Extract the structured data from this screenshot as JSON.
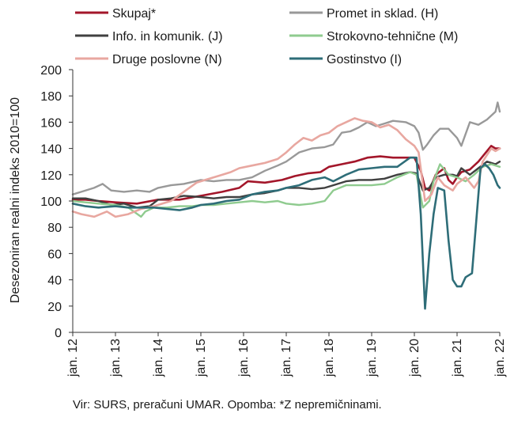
{
  "source_note": "Vir: SURS, preračuni UMAR. Opomba: *Z nepremičninami.",
  "chart_data": {
    "type": "line",
    "ylabel": "Desezoniran realni indeks 2010=100",
    "xlabel": "",
    "ylim": [
      0,
      200
    ],
    "yticks": [
      0,
      20,
      40,
      60,
      80,
      100,
      120,
      140,
      160,
      180,
      200
    ],
    "xlim": [
      2012.0,
      2022.0
    ],
    "xticks": [
      {
        "label": "jan. 12",
        "value": 2012
      },
      {
        "label": "jan. 13",
        "value": 2013
      },
      {
        "label": "jan. 14",
        "value": 2014
      },
      {
        "label": "jan. 15",
        "value": 2015
      },
      {
        "label": "jan. 16",
        "value": 2016
      },
      {
        "label": "jan. 17",
        "value": 2017
      },
      {
        "label": "jan. 18",
        "value": 2018
      },
      {
        "label": "jan. 19",
        "value": 2019
      },
      {
        "label": "jan. 20",
        "value": 2020
      },
      {
        "label": "jan. 21",
        "value": 2021
      },
      {
        "label": "jan. 22",
        "value": 2022
      }
    ],
    "grid": false,
    "legend": "top, two columns",
    "series": [
      {
        "name": "Skupaj*",
        "color": "#a3162a",
        "width": 2.6,
        "points": [
          [
            2012.0,
            101
          ],
          [
            2012.3,
            101
          ],
          [
            2012.6,
            100
          ],
          [
            2013.0,
            99
          ],
          [
            2013.5,
            98
          ],
          [
            2014.0,
            101
          ],
          [
            2014.5,
            101
          ],
          [
            2015.0,
            104
          ],
          [
            2015.5,
            107
          ],
          [
            2015.9,
            110
          ],
          [
            2016.1,
            115
          ],
          [
            2016.5,
            114
          ],
          [
            2016.9,
            116
          ],
          [
            2017.2,
            119
          ],
          [
            2017.5,
            121
          ],
          [
            2017.8,
            122
          ],
          [
            2018.0,
            126
          ],
          [
            2018.3,
            128
          ],
          [
            2018.6,
            130
          ],
          [
            2018.9,
            133
          ],
          [
            2019.2,
            134
          ],
          [
            2019.5,
            133
          ],
          [
            2019.8,
            133
          ],
          [
            2020.0,
            133
          ],
          [
            2020.15,
            123
          ],
          [
            2020.25,
            110
          ],
          [
            2020.35,
            108
          ],
          [
            2020.5,
            120
          ],
          [
            2020.7,
            125
          ],
          [
            2020.8,
            116
          ],
          [
            2020.9,
            113
          ],
          [
            2021.0,
            118
          ],
          [
            2021.1,
            122
          ],
          [
            2021.3,
            124
          ],
          [
            2021.5,
            130
          ],
          [
            2021.7,
            138
          ],
          [
            2021.8,
            142
          ],
          [
            2021.9,
            140
          ],
          [
            2022.0,
            140
          ]
        ]
      },
      {
        "name": "Promet in sklad. (H)",
        "color": "#999999",
        "width": 2.4,
        "points": [
          [
            2012.0,
            105
          ],
          [
            2012.2,
            107
          ],
          [
            2012.5,
            110
          ],
          [
            2012.7,
            113
          ],
          [
            2012.9,
            108
          ],
          [
            2013.2,
            107
          ],
          [
            2013.5,
            108
          ],
          [
            2013.8,
            107
          ],
          [
            2014.0,
            110
          ],
          [
            2014.3,
            112
          ],
          [
            2014.6,
            113
          ],
          [
            2015.0,
            116
          ],
          [
            2015.3,
            115
          ],
          [
            2015.6,
            116
          ],
          [
            2015.9,
            116
          ],
          [
            2016.2,
            118
          ],
          [
            2016.5,
            123
          ],
          [
            2016.8,
            127
          ],
          [
            2017.0,
            130
          ],
          [
            2017.3,
            137
          ],
          [
            2017.6,
            140
          ],
          [
            2017.9,
            141
          ],
          [
            2018.1,
            143
          ],
          [
            2018.3,
            152
          ],
          [
            2018.5,
            153
          ],
          [
            2018.7,
            156
          ],
          [
            2018.9,
            160
          ],
          [
            2019.1,
            157
          ],
          [
            2019.3,
            159
          ],
          [
            2019.5,
            161
          ],
          [
            2019.8,
            160
          ],
          [
            2020.0,
            157
          ],
          [
            2020.1,
            152
          ],
          [
            2020.2,
            139
          ],
          [
            2020.3,
            143
          ],
          [
            2020.45,
            150
          ],
          [
            2020.6,
            155
          ],
          [
            2020.8,
            155
          ],
          [
            2021.0,
            148
          ],
          [
            2021.1,
            142
          ],
          [
            2021.3,
            160
          ],
          [
            2021.5,
            158
          ],
          [
            2021.7,
            162
          ],
          [
            2021.9,
            168
          ],
          [
            2021.95,
            175
          ],
          [
            2022.0,
            168
          ]
        ]
      },
      {
        "name": "Info. in komunik. (J)",
        "color": "#404040",
        "width": 2.4,
        "points": [
          [
            2012.0,
            102
          ],
          [
            2012.3,
            102
          ],
          [
            2012.6,
            100
          ],
          [
            2012.9,
            97
          ],
          [
            2013.2,
            98
          ],
          [
            2013.5,
            95
          ],
          [
            2013.8,
            96
          ],
          [
            2014.0,
            101
          ],
          [
            2014.3,
            102
          ],
          [
            2014.6,
            104
          ],
          [
            2015.0,
            103
          ],
          [
            2015.3,
            102
          ],
          [
            2015.6,
            103
          ],
          [
            2015.9,
            103
          ],
          [
            2016.2,
            105
          ],
          [
            2016.5,
            106
          ],
          [
            2016.8,
            108
          ],
          [
            2017.0,
            110
          ],
          [
            2017.3,
            110
          ],
          [
            2017.6,
            109
          ],
          [
            2017.9,
            110
          ],
          [
            2018.1,
            112
          ],
          [
            2018.4,
            115
          ],
          [
            2018.7,
            116
          ],
          [
            2019.0,
            116
          ],
          [
            2019.3,
            117
          ],
          [
            2019.6,
            120
          ],
          [
            2019.9,
            122
          ],
          [
            2020.05,
            121
          ],
          [
            2020.2,
            108
          ],
          [
            2020.35,
            110
          ],
          [
            2020.5,
            118
          ],
          [
            2020.7,
            120
          ],
          [
            2020.9,
            120
          ],
          [
            2021.0,
            119
          ],
          [
            2021.1,
            125
          ],
          [
            2021.3,
            120
          ],
          [
            2021.5,
            125
          ],
          [
            2021.7,
            130
          ],
          [
            2021.9,
            128
          ],
          [
            2022.0,
            130
          ]
        ]
      },
      {
        "name": "Strokovno-tehnične (M)",
        "color": "#8fcb8f",
        "width": 2.4,
        "points": [
          [
            2012.0,
            100
          ],
          [
            2012.3,
            99
          ],
          [
            2012.6,
            98
          ],
          [
            2013.0,
            97
          ],
          [
            2013.3,
            95
          ],
          [
            2013.6,
            88
          ],
          [
            2013.7,
            92
          ],
          [
            2013.9,
            95
          ],
          [
            2014.2,
            95
          ],
          [
            2014.5,
            96
          ],
          [
            2014.8,
            96
          ],
          [
            2015.0,
            97
          ],
          [
            2015.3,
            97
          ],
          [
            2015.6,
            98
          ],
          [
            2015.9,
            99
          ],
          [
            2016.2,
            100
          ],
          [
            2016.5,
            99
          ],
          [
            2016.8,
            100
          ],
          [
            2017.0,
            98
          ],
          [
            2017.3,
            97
          ],
          [
            2017.6,
            98
          ],
          [
            2017.9,
            100
          ],
          [
            2018.1,
            108
          ],
          [
            2018.4,
            112
          ],
          [
            2018.7,
            112
          ],
          [
            2019.0,
            112
          ],
          [
            2019.3,
            113
          ],
          [
            2019.6,
            118
          ],
          [
            2019.9,
            122
          ],
          [
            2020.05,
            120
          ],
          [
            2020.2,
            95
          ],
          [
            2020.35,
            100
          ],
          [
            2020.45,
            115
          ],
          [
            2020.6,
            128
          ],
          [
            2020.8,
            120
          ],
          [
            2021.0,
            118
          ],
          [
            2021.2,
            115
          ],
          [
            2021.4,
            120
          ],
          [
            2021.6,
            126
          ],
          [
            2021.8,
            128
          ],
          [
            2022.0,
            126
          ]
        ]
      },
      {
        "name": "Druge poslovne (N)",
        "color": "#e8a7a0",
        "width": 2.6,
        "points": [
          [
            2012.0,
            92
          ],
          [
            2012.2,
            90
          ],
          [
            2012.5,
            88
          ],
          [
            2012.8,
            92
          ],
          [
            2013.0,
            88
          ],
          [
            2013.3,
            90
          ],
          [
            2013.6,
            94
          ],
          [
            2013.9,
            96
          ],
          [
            2014.1,
            98
          ],
          [
            2014.3,
            100
          ],
          [
            2014.6,
            107
          ],
          [
            2014.9,
            114
          ],
          [
            2015.1,
            116
          ],
          [
            2015.4,
            119
          ],
          [
            2015.7,
            122
          ],
          [
            2015.9,
            125
          ],
          [
            2016.2,
            127
          ],
          [
            2016.5,
            129
          ],
          [
            2016.8,
            132
          ],
          [
            2017.0,
            137
          ],
          [
            2017.2,
            143
          ],
          [
            2017.4,
            148
          ],
          [
            2017.6,
            146
          ],
          [
            2017.8,
            150
          ],
          [
            2018.0,
            152
          ],
          [
            2018.2,
            157
          ],
          [
            2018.4,
            160
          ],
          [
            2018.6,
            163
          ],
          [
            2018.8,
            161
          ],
          [
            2019.0,
            160
          ],
          [
            2019.2,
            156
          ],
          [
            2019.4,
            158
          ],
          [
            2019.6,
            154
          ],
          [
            2019.8,
            147
          ],
          [
            2020.0,
            142
          ],
          [
            2020.1,
            137
          ],
          [
            2020.25,
            100
          ],
          [
            2020.4,
            105
          ],
          [
            2020.55,
            118
          ],
          [
            2020.7,
            112
          ],
          [
            2020.9,
            108
          ],
          [
            2021.0,
            113
          ],
          [
            2021.2,
            118
          ],
          [
            2021.4,
            110
          ],
          [
            2021.5,
            115
          ],
          [
            2021.6,
            130
          ],
          [
            2021.8,
            140
          ],
          [
            2021.9,
            138
          ],
          [
            2022.0,
            140
          ]
        ]
      },
      {
        "name": "Gostinstvo (I)",
        "color": "#2e6d78",
        "width": 2.6,
        "points": [
          [
            2012.0,
            98
          ],
          [
            2012.3,
            96
          ],
          [
            2012.6,
            95
          ],
          [
            2013.0,
            96
          ],
          [
            2013.3,
            95
          ],
          [
            2013.6,
            95
          ],
          [
            2013.9,
            95
          ],
          [
            2014.2,
            94
          ],
          [
            2014.5,
            93
          ],
          [
            2014.8,
            95
          ],
          [
            2015.0,
            97
          ],
          [
            2015.3,
            98
          ],
          [
            2015.6,
            100
          ],
          [
            2015.9,
            101
          ],
          [
            2016.2,
            105
          ],
          [
            2016.5,
            107
          ],
          [
            2016.8,
            108
          ],
          [
            2017.0,
            110
          ],
          [
            2017.3,
            112
          ],
          [
            2017.6,
            116
          ],
          [
            2017.9,
            118
          ],
          [
            2018.1,
            115
          ],
          [
            2018.4,
            120
          ],
          [
            2018.7,
            124
          ],
          [
            2019.0,
            125
          ],
          [
            2019.3,
            126
          ],
          [
            2019.6,
            126
          ],
          [
            2019.9,
            133
          ],
          [
            2020.05,
            133
          ],
          [
            2020.15,
            90
          ],
          [
            2020.25,
            18
          ],
          [
            2020.35,
            60
          ],
          [
            2020.45,
            90
          ],
          [
            2020.55,
            110
          ],
          [
            2020.7,
            108
          ],
          [
            2020.8,
            70
          ],
          [
            2020.9,
            40
          ],
          [
            2021.0,
            35
          ],
          [
            2021.1,
            35
          ],
          [
            2021.2,
            42
          ],
          [
            2021.35,
            45
          ],
          [
            2021.45,
            85
          ],
          [
            2021.55,
            125
          ],
          [
            2021.65,
            128
          ],
          [
            2021.75,
            125
          ],
          [
            2021.85,
            120
          ],
          [
            2021.95,
            112
          ],
          [
            2022.0,
            110
          ]
        ]
      }
    ]
  }
}
